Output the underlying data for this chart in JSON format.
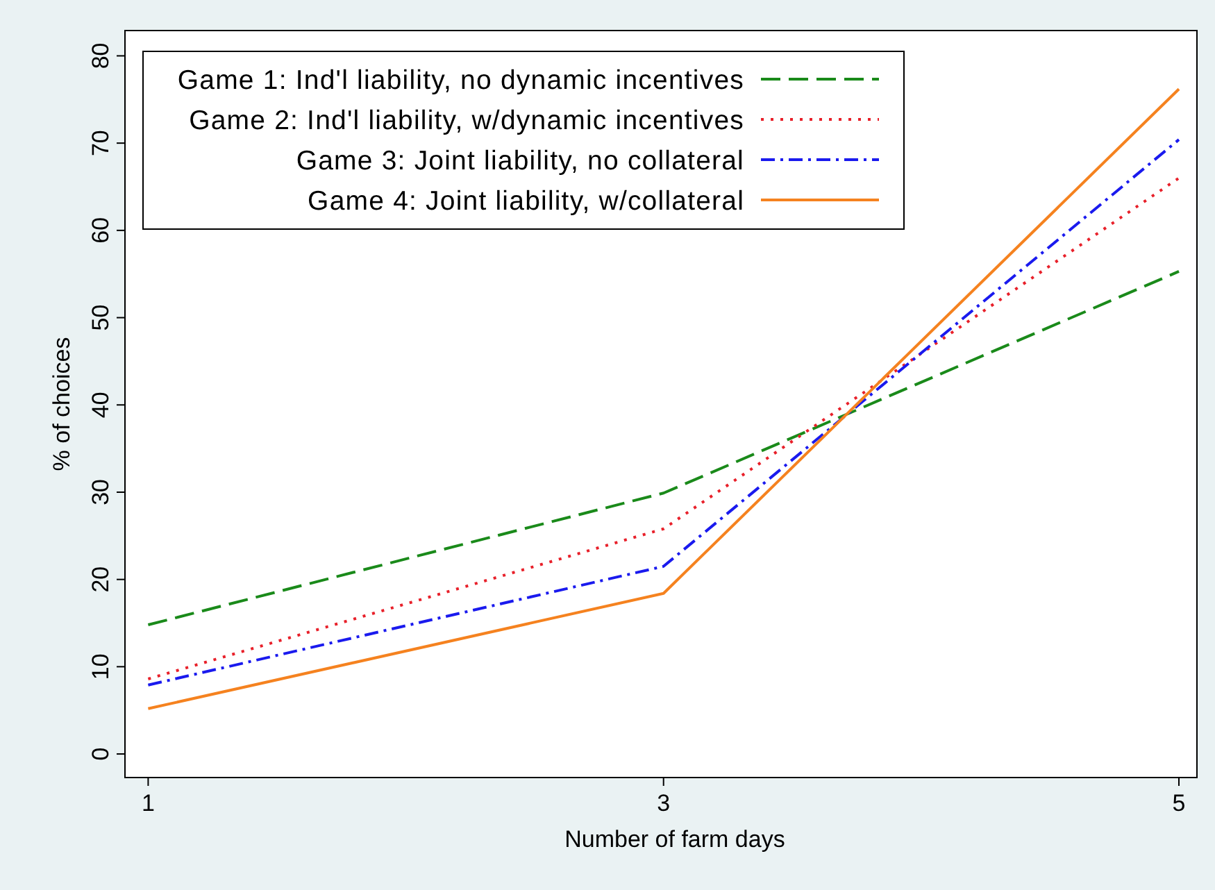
{
  "chart_data": {
    "type": "line",
    "xlabel": "Number of farm days",
    "ylabel": "% of choices",
    "x": [
      1,
      3,
      5
    ],
    "xlim": [
      0.91,
      5.07
    ],
    "xticks": [
      1,
      3,
      5
    ],
    "ylim": [
      -2.7,
      82.9
    ],
    "yticks": [
      0,
      10,
      20,
      30,
      40,
      50,
      60,
      70,
      80
    ],
    "grid": false,
    "legend": "top",
    "marker": "none",
    "series": [
      {
        "name": "Game 1: Ind'l liability, no dynamic incentives",
        "color": "#1a8a1a",
        "line_style": "dashed",
        "values": [
          14.8,
          29.9,
          55.3
        ]
      },
      {
        "name": "Game 2: Ind'l liability, w/dynamic incentives",
        "color": "#e8202a",
        "line_style": "dotted",
        "values": [
          8.6,
          25.8,
          66
        ]
      },
      {
        "name": "Game 3: Joint liability, no collateral",
        "color": "#1a1aee",
        "line_style": "dashdot",
        "values": [
          7.9,
          21.5,
          70.4
        ]
      },
      {
        "name": "Game 4: Joint liability, w/collateral",
        "color": "#f5821f",
        "line_style": "solid",
        "values": [
          5.2,
          18.4,
          76.2
        ]
      }
    ]
  }
}
